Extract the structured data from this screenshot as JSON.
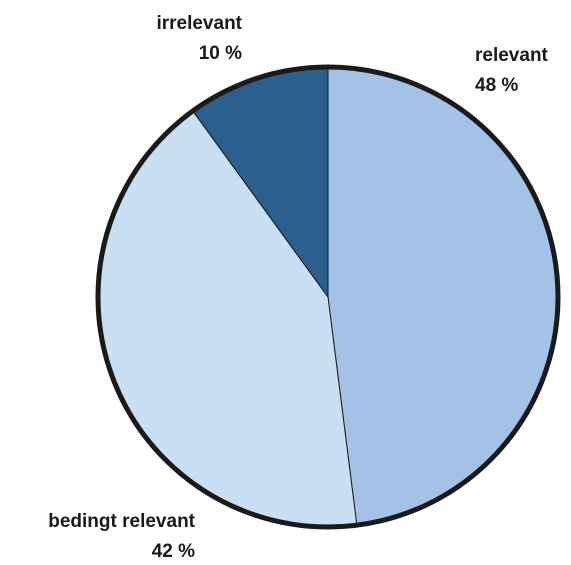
{
  "chart_data": {
    "type": "pie",
    "slices": [
      {
        "label": "relevant",
        "value": 48,
        "value_label": "48 %",
        "color": "#a3c2e5"
      },
      {
        "label": "bedingt relevant",
        "value": 42,
        "value_label": "42 %",
        "color": "#c9e0f4"
      },
      {
        "label": "irrelevant",
        "value": 10,
        "value_label": "10 %",
        "color": "#2b5f8d"
      }
    ],
    "start": "12 o'clock",
    "direction": "clockwise",
    "outline_color": "#1a1a1a",
    "legend": "none"
  }
}
